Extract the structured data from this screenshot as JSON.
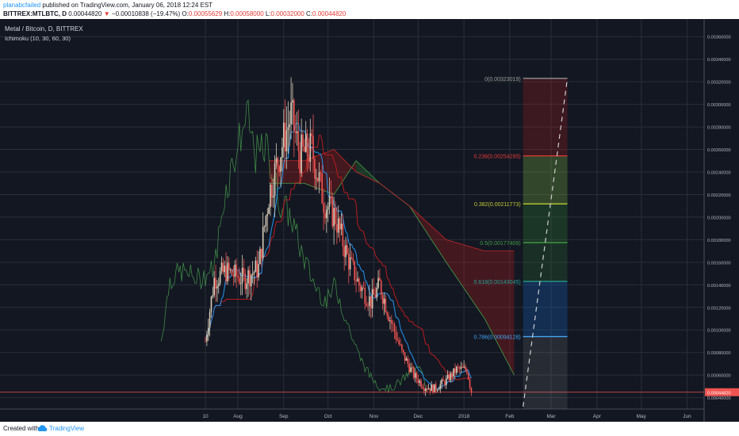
{
  "header": {
    "user": "planabcfailed",
    "published": "published on TradingView.com, January 06, 2018 12:24 EST",
    "symbol": "BITTREX:MTLBTC, D",
    "price": "0.00044820",
    "arrow": "▼",
    "change": "−0.00010838 (−19.47%)",
    "o_label": "O:",
    "o_val": "0.00055629",
    "h_label": "H:",
    "h_val": "0.00058000",
    "l_label": "L:",
    "l_val": "0.00032000",
    "c_label": "C:",
    "c_val": "0.00044820"
  },
  "legend": {
    "series": "Metal / Bitcoin, D, BITTREX",
    "indicator": "Ichimoku (10, 30, 60, 30)"
  },
  "footer": {
    "created": "Created with",
    "brand": "TradingView",
    "logo_icon": "tradingview-cloud-icon"
  },
  "colors": {
    "background": "#131722",
    "up": "#d8cdb8",
    "down": "#ef5350",
    "conversion": "#2196f3",
    "base": "#b71c1c",
    "lagging": "#4caf50",
    "cloud_bull": "#2e7d32",
    "cloud_bear": "#b71c1c"
  },
  "chart_data": {
    "type": "candlestick",
    "title": "Metal / Bitcoin, D, BITTREX",
    "ylim": [
      0.00032,
      0.0037
    ],
    "grid": true,
    "x_ticks": [
      {
        "label": "10",
        "date": "2017-07-10"
      },
      {
        "label": "Aug",
        "date": "2017-08-01"
      },
      {
        "label": "Sep",
        "date": "2017-09-01"
      },
      {
        "label": "Oct",
        "date": "2017-10-01"
      },
      {
        "label": "Nov",
        "date": "2017-11-01"
      },
      {
        "label": "Dec",
        "date": "2017-12-01"
      },
      {
        "label": "2018",
        "date": "2018-01-01"
      },
      {
        "label": "Feb",
        "date": "2018-02-01"
      },
      {
        "label": "Mar",
        "date": "2018-03-01"
      },
      {
        "label": "Apr",
        "date": "2018-04-01"
      },
      {
        "label": "May",
        "date": "2018-05-01"
      },
      {
        "label": "Jun",
        "date": "2018-06-01"
      }
    ],
    "y_ticks": [
      "0.00360000",
      "0.00340000",
      "0.00320000",
      "0.00300000",
      "0.00280000",
      "0.00260000",
      "0.00240000",
      "0.00220000",
      "0.00200000",
      "0.00180000",
      "0.00160000",
      "0.00140000",
      "0.00120000",
      "0.00100000",
      "0.00080000",
      "0.00060000",
      "0.00040000"
    ],
    "last_price_label": "0.00044820",
    "last_price": 0.0004482,
    "keypoints": [
      {
        "date": "2017-07-10",
        "close": 0.0009
      },
      {
        "date": "2017-07-16",
        "close": 0.00145
      },
      {
        "date": "2017-07-24",
        "close": 0.00152
      },
      {
        "date": "2017-08-05",
        "close": 0.00145
      },
      {
        "date": "2017-08-15",
        "close": 0.00155
      },
      {
        "date": "2017-08-22",
        "close": 0.0022
      },
      {
        "date": "2017-08-30",
        "close": 0.0026
      },
      {
        "date": "2017-09-06",
        "close": 0.0029
      },
      {
        "date": "2017-09-12",
        "close": 0.00255
      },
      {
        "date": "2017-09-20",
        "close": 0.0026
      },
      {
        "date": "2017-09-28",
        "close": 0.00215
      },
      {
        "date": "2017-10-06",
        "close": 0.002
      },
      {
        "date": "2017-10-14",
        "close": 0.00165
      },
      {
        "date": "2017-10-22",
        "close": 0.0014
      },
      {
        "date": "2017-10-30",
        "close": 0.00125
      },
      {
        "date": "2017-11-05",
        "close": 0.0014
      },
      {
        "date": "2017-11-12",
        "close": 0.0011
      },
      {
        "date": "2017-11-20",
        "close": 0.0008
      },
      {
        "date": "2017-11-28",
        "close": 0.0006
      },
      {
        "date": "2017-12-05",
        "close": 0.0005
      },
      {
        "date": "2017-12-12",
        "close": 0.00048
      },
      {
        "date": "2017-12-20",
        "close": 0.00055
      },
      {
        "date": "2017-12-27",
        "close": 0.00065
      },
      {
        "date": "2018-01-03",
        "close": 0.00065
      },
      {
        "date": "2018-01-06",
        "close": 0.0004482
      }
    ],
    "ichimoku": {
      "settings": "Ichimoku (10, 30, 60, 30)",
      "span_a": [
        {
          "date": "2017-08-22",
          "value": 0.0023
        },
        {
          "date": "2017-09-15",
          "value": 0.0023
        },
        {
          "date": "2017-10-05",
          "value": 0.0022
        },
        {
          "date": "2017-10-20",
          "value": 0.0025
        },
        {
          "date": "2017-11-05",
          "value": 0.0023
        },
        {
          "date": "2017-11-25",
          "value": 0.0021
        },
        {
          "date": "2017-12-20",
          "value": 0.0016
        },
        {
          "date": "2018-01-15",
          "value": 0.0011
        },
        {
          "date": "2018-02-04",
          "value": 0.0006
        }
      ],
      "span_b": [
        {
          "date": "2017-08-22",
          "value": 0.0025
        },
        {
          "date": "2017-09-15",
          "value": 0.0025
        },
        {
          "date": "2017-10-05",
          "value": 0.0026
        },
        {
          "date": "2017-10-20",
          "value": 0.0024
        },
        {
          "date": "2017-11-05",
          "value": 0.0023
        },
        {
          "date": "2017-11-25",
          "value": 0.0021
        },
        {
          "date": "2017-12-20",
          "value": 0.0018
        },
        {
          "date": "2018-01-15",
          "value": 0.0017
        },
        {
          "date": "2018-02-04",
          "value": 0.0017
        }
      ]
    },
    "fibonacci": {
      "levels": [
        {
          "label": "0(0.00323019)",
          "value": 0.00323019,
          "color": "#9e9e9e"
        },
        {
          "label": "0.236(0.00254295)",
          "value": 0.00254295,
          "color": "#e53935"
        },
        {
          "label": "0.382(0.00211773)",
          "value": 0.00211773,
          "color": "#c0ca33"
        },
        {
          "label": "0.5(0.00177409)",
          "value": 0.00177409,
          "color": "#43a047"
        },
        {
          "label": "0.618(0.00143045)",
          "value": 0.00143045,
          "color": "#26a69a"
        },
        {
          "label": "0.786(0.00094128)",
          "value": 0.00094128,
          "color": "#42a5f5"
        }
      ],
      "start_date": "2018-02-10",
      "end_date": "2018-03-12",
      "trend_line": [
        {
          "date": "2018-02-10",
          "value": 0.00032
        },
        {
          "date": "2018-03-12",
          "value": 0.00323019
        }
      ]
    }
  }
}
